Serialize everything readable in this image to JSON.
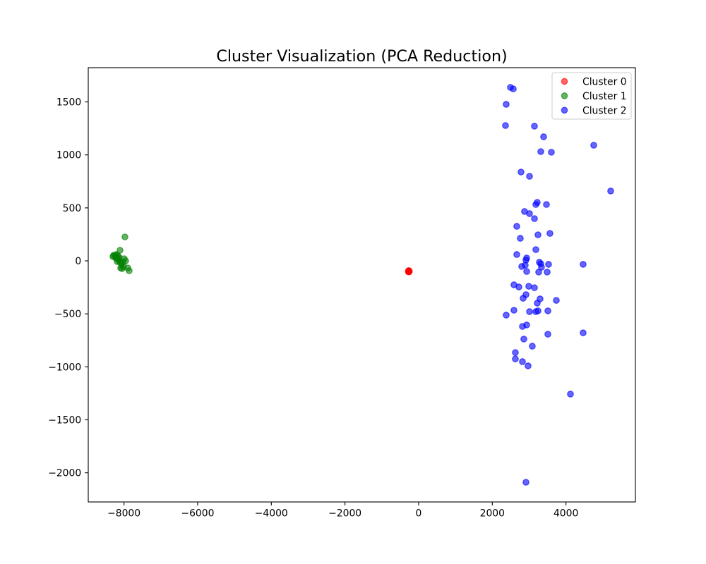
{
  "chart_data": {
    "type": "scatter",
    "title": "Cluster Visualization (PCA Reduction)",
    "xlim": [
      -8970,
      5885
    ],
    "ylim": [
      -2275,
      1823
    ],
    "xticks": [
      -8000,
      -6000,
      -4000,
      -2000,
      0,
      2000,
      4000
    ],
    "xtick_labels": [
      "−8000",
      "−6000",
      "−4000",
      "−2000",
      "0",
      "2000",
      "4000"
    ],
    "yticks": [
      -2000,
      -1500,
      -1000,
      -500,
      0,
      500,
      1000,
      1500
    ],
    "ytick_labels": [
      "−2000",
      "−1500",
      "−1000",
      "−500",
      "0",
      "500",
      "1000",
      "1500"
    ],
    "grid": false,
    "legend_position": "top-right",
    "series": [
      {
        "name": "Cluster 0",
        "color": "#ff0000",
        "points": [
          [
            -268,
            -100
          ],
          [
            -255,
            -97
          ],
          [
            -280,
            -103
          ],
          [
            -262,
            -94
          ],
          [
            -274,
            -98
          ],
          [
            -259,
            -104
          ],
          [
            -271,
            -92
          ],
          [
            -265,
            -101
          ]
        ]
      },
      {
        "name": "Cluster 1",
        "color": "#008000",
        "points": [
          [
            -7974,
            226
          ],
          [
            -8108,
            100
          ],
          [
            -8300,
            40
          ],
          [
            -8281,
            53
          ],
          [
            -8243,
            53
          ],
          [
            -8204,
            60
          ],
          [
            -8224,
            27
          ],
          [
            -8185,
            27
          ],
          [
            -8147,
            7
          ],
          [
            -8108,
            -13
          ],
          [
            -8070,
            -33
          ],
          [
            -8089,
            -67
          ],
          [
            -8051,
            -73
          ],
          [
            -7993,
            20
          ],
          [
            -7955,
            0
          ],
          [
            -7897,
            -67
          ],
          [
            -7859,
            -93
          ],
          [
            -8013,
            -53
          ],
          [
            -8185,
            -7
          ],
          [
            -8128,
            33
          ],
          [
            -8166,
            47
          ],
          [
            -8032,
            -13
          ]
        ]
      },
      {
        "name": "Cluster 2",
        "color": "#0000ff",
        "points": [
          [
            2492,
            1637
          ],
          [
            2569,
            1623
          ],
          [
            2377,
            1477
          ],
          [
            2358,
            1277
          ],
          [
            3144,
            1271
          ],
          [
            3393,
            1171
          ],
          [
            4754,
            1091
          ],
          [
            3316,
            1031
          ],
          [
            3604,
            1025
          ],
          [
            2780,
            838
          ],
          [
            3010,
            798
          ],
          [
            5214,
            659
          ],
          [
            3220,
            552
          ],
          [
            3182,
            532
          ],
          [
            3470,
            532
          ],
          [
            2875,
            466
          ],
          [
            3010,
            446
          ],
          [
            3144,
            399
          ],
          [
            2664,
            326
          ],
          [
            3240,
            246
          ],
          [
            3565,
            259
          ],
          [
            2760,
            213
          ],
          [
            3182,
            106
          ],
          [
            2664,
            60
          ],
          [
            2933,
            27
          ],
          [
            2914,
            7
          ],
          [
            3278,
            -13
          ],
          [
            3316,
            -27
          ],
          [
            2894,
            -40
          ],
          [
            3527,
            -33
          ],
          [
            4466,
            -33
          ],
          [
            2799,
            -53
          ],
          [
            3335,
            -60
          ],
          [
            2933,
            -100
          ],
          [
            3259,
            -106
          ],
          [
            3489,
            -106
          ],
          [
            2588,
            -226
          ],
          [
            2722,
            -246
          ],
          [
            2990,
            -240
          ],
          [
            3144,
            -253
          ],
          [
            2914,
            -319
          ],
          [
            2837,
            -353
          ],
          [
            3297,
            -359
          ],
          [
            3220,
            -399
          ],
          [
            3738,
            -373
          ],
          [
            2588,
            -466
          ],
          [
            3010,
            -479
          ],
          [
            3182,
            -479
          ],
          [
            3240,
            -472
          ],
          [
            3508,
            -472
          ],
          [
            2377,
            -512
          ],
          [
            2933,
            -605
          ],
          [
            2818,
            -619
          ],
          [
            3508,
            -692
          ],
          [
            4466,
            -679
          ],
          [
            2856,
            -738
          ],
          [
            3086,
            -805
          ],
          [
            2626,
            -865
          ],
          [
            2626,
            -925
          ],
          [
            2818,
            -951
          ],
          [
            2971,
            -991
          ],
          [
            4121,
            -1257
          ],
          [
            2914,
            -2089
          ]
        ]
      }
    ]
  }
}
